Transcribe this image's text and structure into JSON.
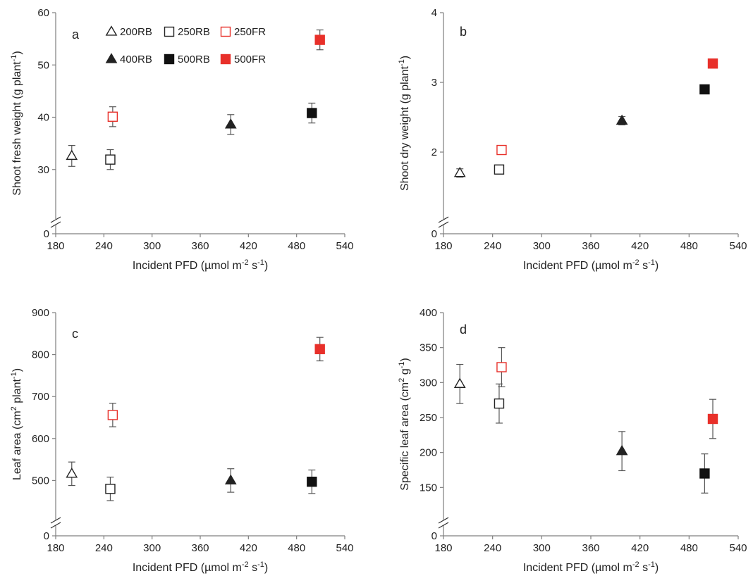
{
  "legend": [
    {
      "label": "200RB",
      "marker": "triangle",
      "filled": false,
      "color": "#222222"
    },
    {
      "label": "250RB",
      "marker": "square",
      "filled": false,
      "color": "#222222"
    },
    {
      "label": "250FR",
      "marker": "square",
      "filled": false,
      "color": "#e8302a"
    },
    {
      "label": "400RB",
      "marker": "triangle",
      "filled": true,
      "color": "#222222"
    },
    {
      "label": "500RB",
      "marker": "square",
      "filled": true,
      "color": "#111111"
    },
    {
      "label": "500FR",
      "marker": "square",
      "filled": true,
      "color": "#e8302a"
    }
  ],
  "chart_data": [
    {
      "type": "scatter",
      "panel": "a",
      "xlabel": "Incident PFD (µmol m⁻² s⁻¹)",
      "xlabel_main": "Incident PFD (µmol m",
      "xlabel_sup1": "-2",
      "xlabel_mid": " s",
      "xlabel_sup2": "-1",
      "xlabel_end": ")",
      "ylabel": "Shoot fresh weight (g plant⁻¹)",
      "ylabel_main": "Shoot fresh weight (g plant",
      "ylabel_sup": "-1",
      "ylabel_end": ")",
      "xlim": [
        180,
        540
      ],
      "ylim_broken": [
        0,
        20,
        60
      ],
      "xticks": [
        180,
        240,
        300,
        360,
        420,
        480,
        540
      ],
      "xtick_labels": [
        "180",
        "240",
        "300",
        "360",
        "420",
        "480",
        "540"
      ],
      "yticks": [
        30,
        40,
        50,
        60
      ],
      "ytick_labels": [
        "30",
        "40",
        "50",
        "60"
      ],
      "y_zero_label": "0",
      "legend_position": "top",
      "series": [
        {
          "name": "200RB",
          "x": 200,
          "y": 32.6,
          "err": 2.0
        },
        {
          "name": "250RB",
          "x": 248,
          "y": 31.9,
          "err": 1.9
        },
        {
          "name": "250FR",
          "x": 251,
          "y": 40.1,
          "err": 1.9
        },
        {
          "name": "400RB",
          "x": 398,
          "y": 38.6,
          "err": 1.9
        },
        {
          "name": "500RB",
          "x": 499,
          "y": 40.8,
          "err": 1.9
        },
        {
          "name": "500FR",
          "x": 509,
          "y": 54.8,
          "err": 1.9
        }
      ]
    },
    {
      "type": "scatter",
      "panel": "b",
      "xlabel": "Incident PFD (µmol m⁻² s⁻¹)",
      "xlabel_main": "Incident PFD (µmol m",
      "xlabel_sup1": "-2",
      "xlabel_mid": " s",
      "xlabel_sup2": "-1",
      "xlabel_end": ")",
      "ylabel": "Shoot dry weight (g plant⁻¹)",
      "ylabel_main": "Shoot dry weight (g plant",
      "ylabel_sup": "-1",
      "ylabel_end": ")",
      "xlim": [
        180,
        540
      ],
      "ylim_broken": [
        0,
        1,
        4
      ],
      "xticks": [
        180,
        240,
        300,
        360,
        420,
        480,
        540
      ],
      "xtick_labels": [
        "180",
        "240",
        "300",
        "360",
        "420",
        "480",
        "540"
      ],
      "yticks": [
        2,
        3,
        4
      ],
      "ytick_labels": [
        "2",
        "3",
        "4"
      ],
      "y_zero_label": "0",
      "series": [
        {
          "name": "200RB",
          "x": 200,
          "y": 1.7,
          "err": 0.06
        },
        {
          "name": "250RB",
          "x": 248,
          "y": 1.75,
          "err": 0.06
        },
        {
          "name": "250FR",
          "x": 251,
          "y": 2.03,
          "err": 0.06
        },
        {
          "name": "400RB",
          "x": 398,
          "y": 2.45,
          "err": 0.06
        },
        {
          "name": "500RB",
          "x": 499,
          "y": 2.9,
          "err": 0.06
        },
        {
          "name": "500FR",
          "x": 509,
          "y": 3.27,
          "err": 0.06
        }
      ]
    },
    {
      "type": "scatter",
      "panel": "c",
      "xlabel": "Incident PFD (µmol m⁻² s⁻¹)",
      "xlabel_main": "Incident PFD (µmol m",
      "xlabel_sup1": "-2",
      "xlabel_mid": " s",
      "xlabel_sup2": "-1",
      "xlabel_end": ")",
      "ylabel": "Leaf area (cm² plant⁻¹)",
      "ylabel_main": "Leaf area (cm",
      "ylabel_sup0": "2",
      "ylabel_mid": " plant",
      "ylabel_sup": "-1",
      "ylabel_end": ")",
      "xlim": [
        180,
        540
      ],
      "ylim_broken": [
        0,
        400,
        900
      ],
      "xticks": [
        180,
        240,
        300,
        360,
        420,
        480,
        540
      ],
      "xtick_labels": [
        "180",
        "240",
        "300",
        "360",
        "420",
        "480",
        "540"
      ],
      "yticks": [
        500,
        600,
        700,
        800,
        900
      ],
      "ytick_labels": [
        "500",
        "600",
        "700",
        "800",
        "900"
      ],
      "y_zero_label": "0",
      "series": [
        {
          "name": "200RB",
          "x": 200,
          "y": 516,
          "err": 28
        },
        {
          "name": "250RB",
          "x": 248,
          "y": 480,
          "err": 28
        },
        {
          "name": "250FR",
          "x": 251,
          "y": 656,
          "err": 28
        },
        {
          "name": "400RB",
          "x": 398,
          "y": 500,
          "err": 28
        },
        {
          "name": "500RB",
          "x": 499,
          "y": 497,
          "err": 28
        },
        {
          "name": "500FR",
          "x": 509,
          "y": 813,
          "err": 28
        }
      ]
    },
    {
      "type": "scatter",
      "panel": "d",
      "xlabel": "Incident PFD (µmol m⁻² s⁻¹)",
      "xlabel_main": "Incident PFD (µmol m",
      "xlabel_sup1": "-2",
      "xlabel_mid": " s",
      "xlabel_sup2": "-1",
      "xlabel_end": ")",
      "ylabel": "Specific leaf area (cm² g⁻¹)",
      "ylabel_main": "Specific leaf area (cm",
      "ylabel_sup0": "2",
      "ylabel_mid": " g",
      "ylabel_sup": "-1",
      "ylabel_end": ")",
      "xlim": [
        180,
        540
      ],
      "ylim_broken": [
        0,
        100,
        400
      ],
      "xticks": [
        180,
        240,
        300,
        360,
        420,
        480,
        540
      ],
      "xtick_labels": [
        "180",
        "240",
        "300",
        "360",
        "420",
        "480",
        "540"
      ],
      "yticks": [
        150,
        200,
        250,
        300,
        350,
        400
      ],
      "ytick_labels": [
        "150",
        "200",
        "250",
        "300",
        "350",
        "400"
      ],
      "y_zero_label": "0",
      "series": [
        {
          "name": "200RB",
          "x": 200,
          "y": 298,
          "err": 28
        },
        {
          "name": "250RB",
          "x": 248,
          "y": 270,
          "err": 28
        },
        {
          "name": "250FR",
          "x": 251,
          "y": 322,
          "err": 28
        },
        {
          "name": "400RB",
          "x": 398,
          "y": 202,
          "err": 28
        },
        {
          "name": "500RB",
          "x": 499,
          "y": 170,
          "err": 28
        },
        {
          "name": "500FR",
          "x": 509,
          "y": 248,
          "err": 28
        }
      ]
    }
  ]
}
